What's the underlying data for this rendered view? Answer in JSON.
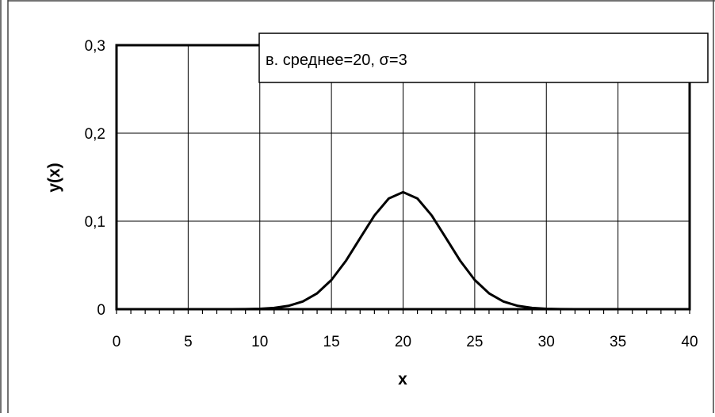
{
  "chart_data": {
    "type": "line",
    "title": "",
    "xlabel": "x",
    "ylabel": "y(x)",
    "xlim": [
      0,
      40
    ],
    "ylim": [
      0,
      0.3
    ],
    "x_ticks": [
      0,
      5,
      10,
      15,
      20,
      25,
      30,
      35,
      40
    ],
    "x_tick_labels": [
      "0",
      "5",
      "10",
      "15",
      "20",
      "25",
      "30",
      "35",
      "40"
    ],
    "y_ticks": [
      0,
      0.1,
      0.2,
      0.3
    ],
    "y_tick_labels": [
      "0",
      "0,1",
      "0,2",
      "0,3"
    ],
    "grid": true,
    "legend_position": "top-right",
    "series": [
      {
        "name": "в. среднее=20, σ=3",
        "color": "#000000",
        "x": [
          0,
          2,
          4,
          6,
          8,
          9,
          10,
          11,
          12,
          13,
          14,
          15,
          16,
          17,
          18,
          19,
          20,
          21,
          22,
          23,
          24,
          25,
          26,
          27,
          28,
          29,
          30,
          31,
          32,
          34,
          36,
          38,
          40
        ],
        "y": [
          0.0,
          0.0,
          0.0,
          0.0,
          0.0,
          0.0001,
          0.0005,
          0.0015,
          0.0038,
          0.0087,
          0.018,
          0.0332,
          0.0547,
          0.0807,
          0.1065,
          0.1258,
          0.133,
          0.1258,
          0.1065,
          0.0807,
          0.0547,
          0.0332,
          0.018,
          0.0087,
          0.0038,
          0.0015,
          0.0005,
          0.0001,
          0.0,
          0.0,
          0.0,
          0.0,
          0.0
        ]
      }
    ]
  }
}
